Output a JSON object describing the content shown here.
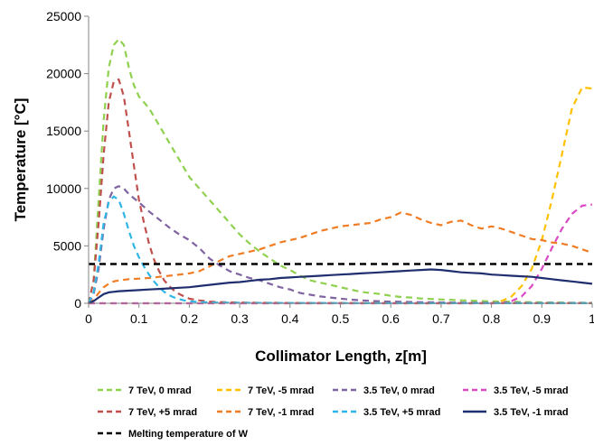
{
  "chart_data": {
    "type": "line",
    "title": "",
    "xlabel": "Collimator Length, z[m]",
    "ylabel": "Temperature [°C]",
    "xlim": [
      0,
      1
    ],
    "ylim": [
      0,
      25000
    ],
    "grid": false,
    "legend_position": "bottom",
    "x_ticks": [
      "0",
      "0.1",
      "0.2",
      "0.3",
      "0.4",
      "0.5",
      "0.6",
      "0.7",
      "0.8",
      "0.9",
      "1"
    ],
    "y_ticks": [
      "0",
      "5000",
      "10000",
      "15000",
      "20000",
      "25000"
    ],
    "series": [
      {
        "name": "7 TeV, 0 mrad",
        "color": "#8fd14f",
        "dash": "dashed",
        "points": [
          [
            0,
            0
          ],
          [
            0.01,
            2000
          ],
          [
            0.02,
            9000
          ],
          [
            0.03,
            16000
          ],
          [
            0.04,
            20500
          ],
          [
            0.05,
            22500
          ],
          [
            0.06,
            23000
          ],
          [
            0.07,
            22500
          ],
          [
            0.08,
            20500
          ],
          [
            0.09,
            19000
          ],
          [
            0.1,
            18000
          ],
          [
            0.12,
            17000
          ],
          [
            0.14,
            15500
          ],
          [
            0.16,
            14000
          ],
          [
            0.18,
            12500
          ],
          [
            0.2,
            11000
          ],
          [
            0.22,
            10000
          ],
          [
            0.24,
            9000
          ],
          [
            0.26,
            8000
          ],
          [
            0.28,
            7000
          ],
          [
            0.3,
            6000
          ],
          [
            0.32,
            5200
          ],
          [
            0.34,
            4500
          ],
          [
            0.36,
            3900
          ],
          [
            0.38,
            3300
          ],
          [
            0.4,
            2900
          ],
          [
            0.42,
            2400
          ],
          [
            0.44,
            2000
          ],
          [
            0.46,
            1800
          ],
          [
            0.48,
            1600
          ],
          [
            0.5,
            1400
          ],
          [
            0.52,
            1200
          ],
          [
            0.54,
            1000
          ],
          [
            0.56,
            900
          ],
          [
            0.58,
            800
          ],
          [
            0.6,
            650
          ],
          [
            0.62,
            550
          ],
          [
            0.64,
            500
          ],
          [
            0.66,
            420
          ],
          [
            0.68,
            380
          ],
          [
            0.7,
            330
          ],
          [
            0.72,
            300
          ],
          [
            0.74,
            260
          ],
          [
            0.76,
            230
          ],
          [
            0.78,
            200
          ],
          [
            0.8,
            170
          ],
          [
            0.82,
            150
          ],
          [
            0.84,
            130
          ],
          [
            0.86,
            110
          ],
          [
            0.88,
            95
          ],
          [
            0.9,
            80
          ],
          [
            0.92,
            70
          ],
          [
            0.94,
            60
          ],
          [
            0.96,
            50
          ],
          [
            0.98,
            45
          ],
          [
            1.0,
            40
          ]
        ]
      },
      {
        "name": "7 TeV, -5 mrad",
        "color": "#ffc000",
        "dash": "dashed",
        "points": [
          [
            0,
            0
          ],
          [
            0.5,
            0
          ],
          [
            0.8,
            0
          ],
          [
            0.82,
            200
          ],
          [
            0.84,
            600
          ],
          [
            0.86,
            1500
          ],
          [
            0.88,
            3000
          ],
          [
            0.9,
            5500
          ],
          [
            0.92,
            9000
          ],
          [
            0.94,
            13000
          ],
          [
            0.96,
            17000
          ],
          [
            0.98,
            18800
          ],
          [
            1.0,
            18700
          ]
        ]
      },
      {
        "name": "3.5 TeV, 0 mrad",
        "color": "#8064a2",
        "dash": "dashed",
        "points": [
          [
            0,
            0
          ],
          [
            0.01,
            800
          ],
          [
            0.02,
            3000
          ],
          [
            0.03,
            6500
          ],
          [
            0.04,
            9000
          ],
          [
            0.05,
            10000
          ],
          [
            0.06,
            10200
          ],
          [
            0.07,
            10000
          ],
          [
            0.08,
            9500
          ],
          [
            0.1,
            8800
          ],
          [
            0.12,
            8000
          ],
          [
            0.14,
            7300
          ],
          [
            0.16,
            6600
          ],
          [
            0.18,
            6000
          ],
          [
            0.2,
            5500
          ],
          [
            0.22,
            4800
          ],
          [
            0.24,
            3900
          ],
          [
            0.26,
            3300
          ],
          [
            0.28,
            2800
          ],
          [
            0.3,
            2500
          ],
          [
            0.32,
            2200
          ],
          [
            0.34,
            2000
          ],
          [
            0.36,
            1700
          ],
          [
            0.38,
            1400
          ],
          [
            0.4,
            1200
          ],
          [
            0.42,
            900
          ],
          [
            0.44,
            750
          ],
          [
            0.46,
            600
          ],
          [
            0.48,
            500
          ],
          [
            0.5,
            400
          ],
          [
            0.52,
            320
          ],
          [
            0.54,
            260
          ],
          [
            0.56,
            210
          ],
          [
            0.58,
            170
          ],
          [
            0.6,
            140
          ],
          [
            0.65,
            100
          ],
          [
            0.7,
            70
          ],
          [
            0.75,
            55
          ],
          [
            0.8,
            45
          ],
          [
            0.85,
            40
          ],
          [
            0.9,
            35
          ],
          [
            0.95,
            30
          ],
          [
            1.0,
            25
          ]
        ]
      },
      {
        "name": "3.5 TeV, -5 mrad",
        "color": "#d94ac4",
        "dash": "dashed",
        "points": [
          [
            0,
            0
          ],
          [
            0.5,
            0
          ],
          [
            0.82,
            0
          ],
          [
            0.84,
            200
          ],
          [
            0.86,
            600
          ],
          [
            0.88,
            1500
          ],
          [
            0.9,
            3000
          ],
          [
            0.92,
            4800
          ],
          [
            0.94,
            6500
          ],
          [
            0.96,
            7800
          ],
          [
            0.98,
            8500
          ],
          [
            1.0,
            8600
          ]
        ]
      },
      {
        "name": "7 TeV, +5 mrad",
        "color": "#c0504d",
        "dash": "dashed",
        "points": [
          [
            0,
            0
          ],
          [
            0.01,
            2000
          ],
          [
            0.02,
            7000
          ],
          [
            0.03,
            13000
          ],
          [
            0.04,
            17500
          ],
          [
            0.05,
            19300
          ],
          [
            0.06,
            19500
          ],
          [
            0.07,
            18000
          ],
          [
            0.08,
            15000
          ],
          [
            0.09,
            12000
          ],
          [
            0.1,
            9000
          ],
          [
            0.11,
            7000
          ],
          [
            0.12,
            5200
          ],
          [
            0.13,
            3800
          ],
          [
            0.14,
            2800
          ],
          [
            0.15,
            2000
          ],
          [
            0.16,
            1500
          ],
          [
            0.17,
            1100
          ],
          [
            0.18,
            800
          ],
          [
            0.19,
            600
          ],
          [
            0.2,
            400
          ],
          [
            0.22,
            250
          ],
          [
            0.24,
            150
          ],
          [
            0.26,
            100
          ],
          [
            0.3,
            60
          ],
          [
            0.35,
            40
          ],
          [
            0.4,
            30
          ],
          [
            0.5,
            20
          ],
          [
            0.6,
            15
          ],
          [
            0.7,
            10
          ],
          [
            0.8,
            10
          ],
          [
            0.9,
            10
          ],
          [
            1.0,
            10
          ]
        ]
      },
      {
        "name": "7 TeV, -1 mrad",
        "color": "#f07c24",
        "dash": "dashed",
        "points": [
          [
            0,
            0
          ],
          [
            0.01,
            300
          ],
          [
            0.02,
            900
          ],
          [
            0.03,
            1400
          ],
          [
            0.04,
            1700
          ],
          [
            0.05,
            1900
          ],
          [
            0.06,
            2000
          ],
          [
            0.08,
            2100
          ],
          [
            0.1,
            2150
          ],
          [
            0.12,
            2200
          ],
          [
            0.14,
            2300
          ],
          [
            0.16,
            2400
          ],
          [
            0.18,
            2500
          ],
          [
            0.2,
            2600
          ],
          [
            0.22,
            2800
          ],
          [
            0.24,
            3200
          ],
          [
            0.26,
            3700
          ],
          [
            0.28,
            4100
          ],
          [
            0.3,
            4300
          ],
          [
            0.32,
            4500
          ],
          [
            0.34,
            4700
          ],
          [
            0.36,
            5000
          ],
          [
            0.38,
            5300
          ],
          [
            0.4,
            5500
          ],
          [
            0.42,
            5700
          ],
          [
            0.44,
            6000
          ],
          [
            0.46,
            6300
          ],
          [
            0.48,
            6500
          ],
          [
            0.5,
            6700
          ],
          [
            0.52,
            6800
          ],
          [
            0.54,
            6900
          ],
          [
            0.56,
            7000
          ],
          [
            0.58,
            7300
          ],
          [
            0.6,
            7500
          ],
          [
            0.62,
            7900
          ],
          [
            0.64,
            7700
          ],
          [
            0.66,
            7300
          ],
          [
            0.68,
            7000
          ],
          [
            0.7,
            6800
          ],
          [
            0.72,
            7100
          ],
          [
            0.74,
            7200
          ],
          [
            0.76,
            6800
          ],
          [
            0.78,
            6500
          ],
          [
            0.8,
            6700
          ],
          [
            0.82,
            6500
          ],
          [
            0.84,
            6200
          ],
          [
            0.86,
            5900
          ],
          [
            0.88,
            5600
          ],
          [
            0.9,
            5500
          ],
          [
            0.92,
            5300
          ],
          [
            0.94,
            5200
          ],
          [
            0.96,
            5000
          ],
          [
            0.98,
            4700
          ],
          [
            1.0,
            4400
          ]
        ]
      },
      {
        "name": "3.5 TeV, +5 mrad",
        "color": "#2fb5e6",
        "dash": "dashed",
        "points": [
          [
            0,
            0
          ],
          [
            0.01,
            1000
          ],
          [
            0.02,
            3500
          ],
          [
            0.03,
            7000
          ],
          [
            0.04,
            8800
          ],
          [
            0.05,
            9300
          ],
          [
            0.06,
            9000
          ],
          [
            0.07,
            7800
          ],
          [
            0.08,
            6300
          ],
          [
            0.09,
            5000
          ],
          [
            0.1,
            4000
          ],
          [
            0.11,
            3200
          ],
          [
            0.12,
            2500
          ],
          [
            0.13,
            1900
          ],
          [
            0.14,
            1400
          ],
          [
            0.15,
            1000
          ],
          [
            0.16,
            700
          ],
          [
            0.17,
            500
          ],
          [
            0.18,
            350
          ],
          [
            0.19,
            250
          ],
          [
            0.2,
            180
          ],
          [
            0.22,
            100
          ],
          [
            0.25,
            60
          ],
          [
            0.3,
            40
          ],
          [
            0.4,
            25
          ],
          [
            0.5,
            15
          ],
          [
            0.6,
            10
          ],
          [
            0.8,
            10
          ],
          [
            1.0,
            10
          ]
        ]
      },
      {
        "name": "3.5 TeV, -1 mrad",
        "color": "#1f2e6e",
        "dash": "solid",
        "points": [
          [
            0,
            0
          ],
          [
            0.01,
            200
          ],
          [
            0.02,
            500
          ],
          [
            0.03,
            800
          ],
          [
            0.04,
            950
          ],
          [
            0.05,
            1000
          ],
          [
            0.06,
            1050
          ],
          [
            0.08,
            1100
          ],
          [
            0.1,
            1150
          ],
          [
            0.12,
            1200
          ],
          [
            0.14,
            1250
          ],
          [
            0.16,
            1300
          ],
          [
            0.18,
            1350
          ],
          [
            0.2,
            1400
          ],
          [
            0.22,
            1500
          ],
          [
            0.24,
            1600
          ],
          [
            0.26,
            1700
          ],
          [
            0.28,
            1800
          ],
          [
            0.3,
            1850
          ],
          [
            0.32,
            1950
          ],
          [
            0.34,
            2050
          ],
          [
            0.36,
            2100
          ],
          [
            0.38,
            2200
          ],
          [
            0.4,
            2250
          ],
          [
            0.42,
            2300
          ],
          [
            0.44,
            2350
          ],
          [
            0.46,
            2400
          ],
          [
            0.48,
            2450
          ],
          [
            0.5,
            2500
          ],
          [
            0.52,
            2550
          ],
          [
            0.54,
            2600
          ],
          [
            0.56,
            2650
          ],
          [
            0.58,
            2700
          ],
          [
            0.6,
            2750
          ],
          [
            0.62,
            2800
          ],
          [
            0.64,
            2850
          ],
          [
            0.66,
            2900
          ],
          [
            0.68,
            2950
          ],
          [
            0.7,
            2900
          ],
          [
            0.72,
            2800
          ],
          [
            0.74,
            2700
          ],
          [
            0.76,
            2650
          ],
          [
            0.78,
            2600
          ],
          [
            0.8,
            2500
          ],
          [
            0.82,
            2450
          ],
          [
            0.84,
            2400
          ],
          [
            0.86,
            2350
          ],
          [
            0.88,
            2300
          ],
          [
            0.9,
            2200
          ],
          [
            0.92,
            2100
          ],
          [
            0.94,
            2000
          ],
          [
            0.96,
            1900
          ],
          [
            0.98,
            1800
          ],
          [
            1.0,
            1700
          ]
        ]
      }
    ],
    "reference_line": {
      "name": "Melting temperature of W",
      "value": 3422,
      "color": "#000000",
      "dash": "dashed"
    },
    "legend_rows": [
      [
        "7 TeV, 0 mrad",
        "7 TeV, -5 mrad",
        "3.5 TeV, 0 mrad",
        "3.5 TeV, -5 mrad"
      ],
      [
        "7 TeV, +5 mrad",
        "7 TeV, -1 mrad",
        "3.5 TeV, +5 mrad",
        "3.5 TeV, -1 mrad"
      ],
      [
        "Melting temperature of W"
      ]
    ]
  }
}
